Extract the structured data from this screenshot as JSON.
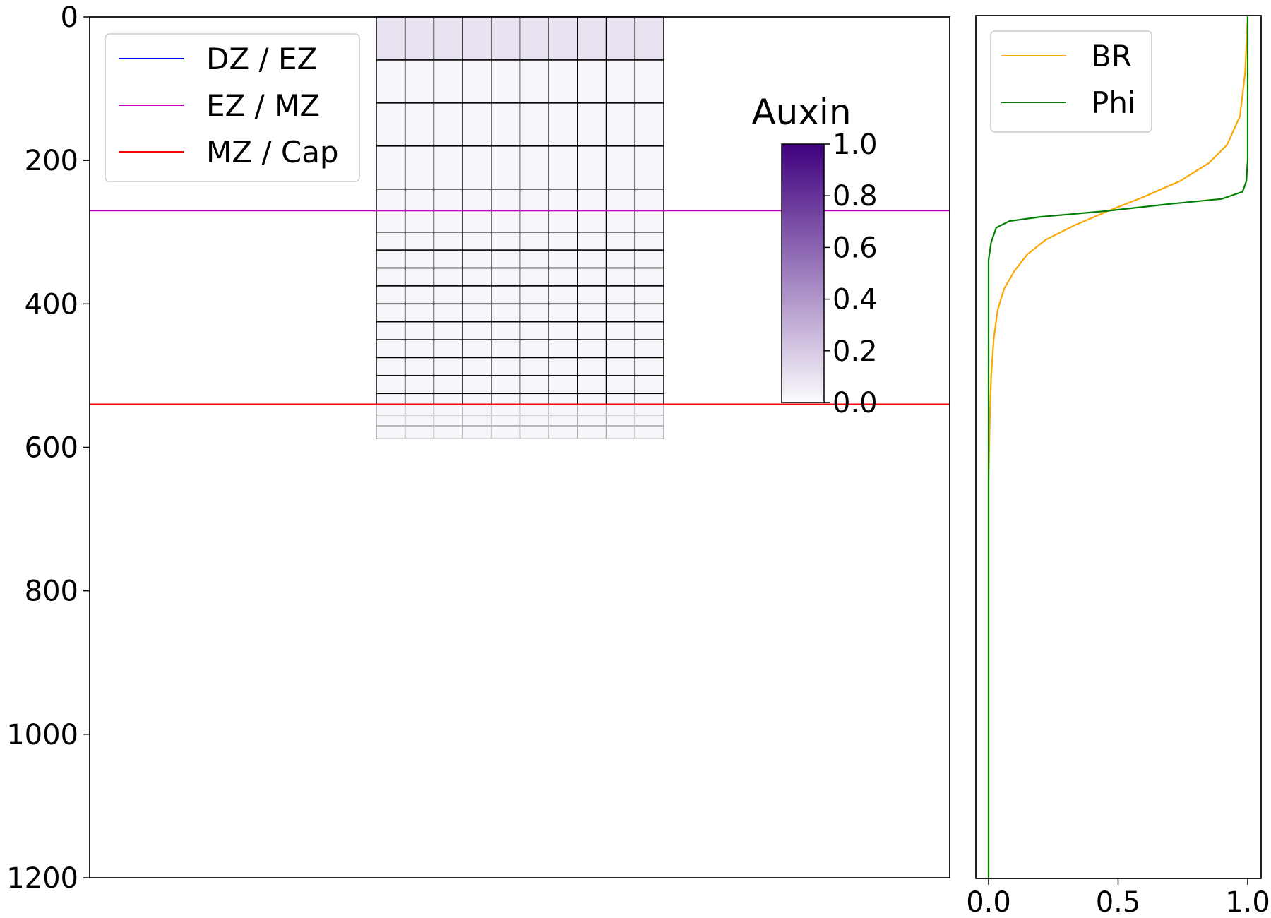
{
  "chart_data": [
    {
      "type": "line",
      "title": "",
      "xlabel": "",
      "ylabel": "",
      "ylim": [
        1200,
        0
      ],
      "y_ticks": [
        "0",
        "200",
        "400",
        "600",
        "800",
        "1000",
        "1200"
      ],
      "grid": false,
      "legend": {
        "placement": "top-left",
        "entries": [
          "DZ / EZ",
          "EZ / MZ",
          "MZ / Cap"
        ]
      },
      "series": [
        {
          "name": "DZ / EZ",
          "color": "#0000ff",
          "y": null
        },
        {
          "name": "EZ / MZ",
          "color": "#bf00bf",
          "y": 270
        },
        {
          "name": "MZ / Cap",
          "color": "#ff0000",
          "y": 540
        }
      ],
      "cell_grid": {
        "columns": 10,
        "row_boundaries": [
          0,
          60,
          120,
          180,
          240,
          270,
          300,
          325,
          350,
          375,
          400,
          425,
          450,
          475,
          500,
          525,
          540,
          555,
          570,
          588
        ],
        "auxin_by_row": [
          0.1,
          0.02,
          0.02,
          0.02,
          0.02,
          0.02,
          0.02,
          0.02,
          0.02,
          0.02,
          0.02,
          0.02,
          0.02,
          0.02,
          0.02,
          0.02,
          0.02,
          0.02,
          0.02
        ],
        "outline_color_above_cap": "#000000",
        "outline_color_cap": "#a9a9a9"
      },
      "colorbar": {
        "title": "Auxin",
        "range": [
          0,
          1
        ],
        "ticks": [
          "0.0",
          "0.2",
          "0.4",
          "0.6",
          "0.8",
          "1.0"
        ],
        "color_low": "#fcfbfd",
        "color_high": "#3f007d"
      }
    },
    {
      "type": "line",
      "title": "",
      "xlabel": "",
      "ylabel": "",
      "xlim": [
        0,
        1
      ],
      "x_ticks": [
        "0.0",
        "0.5",
        "1.0"
      ],
      "ylim": [
        1200,
        0
      ],
      "grid": false,
      "legend": {
        "placement": "top-left",
        "entries": [
          "BR",
          "Phi"
        ]
      },
      "series": [
        {
          "name": "BR",
          "color": "#ffa500",
          "points": [
            [
              1.0,
              0
            ],
            [
              0.99,
              80
            ],
            [
              0.97,
              140
            ],
            [
              0.92,
              180
            ],
            [
              0.85,
              205
            ],
            [
              0.74,
              230
            ],
            [
              0.6,
              252
            ],
            [
              0.46,
              272
            ],
            [
              0.33,
              292
            ],
            [
              0.22,
              312
            ],
            [
              0.15,
              332
            ],
            [
              0.1,
              355
            ],
            [
              0.06,
              380
            ],
            [
              0.035,
              410
            ],
            [
              0.02,
              450
            ],
            [
              0.01,
              500
            ],
            [
              0.005,
              560
            ],
            [
              0.0,
              650
            ],
            [
              0.0,
              1200
            ]
          ]
        },
        {
          "name": "Phi",
          "color": "#008000",
          "points": [
            [
              1.0,
              0
            ],
            [
              1.0,
              200
            ],
            [
              0.995,
              230
            ],
            [
              0.98,
              245
            ],
            [
              0.9,
              255
            ],
            [
              0.7,
              262
            ],
            [
              0.45,
              272
            ],
            [
              0.2,
              280
            ],
            [
              0.08,
              286
            ],
            [
              0.03,
              295
            ],
            [
              0.01,
              315
            ],
            [
              0.0,
              340
            ],
            [
              0.0,
              1200
            ]
          ]
        }
      ]
    }
  ]
}
